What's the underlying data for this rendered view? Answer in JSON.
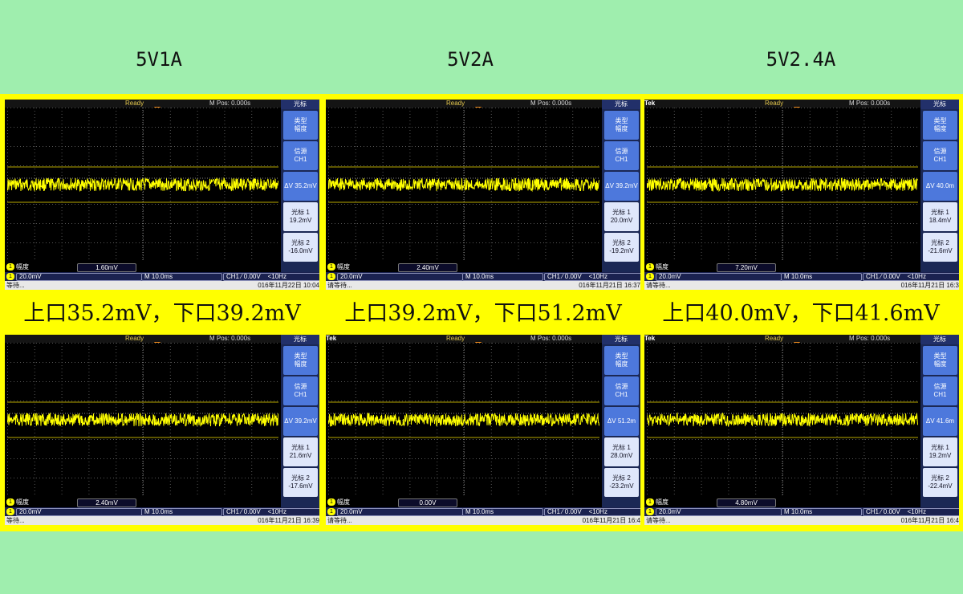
{
  "columns": [
    {
      "title": "5V1A",
      "caption": "上口35.2mV，下口39.2mV"
    },
    {
      "title": "5V2A",
      "caption": "上口39.2mV，下口51.2mV"
    },
    {
      "title": "5V2.4A",
      "caption": "上口40.0mV，下口41.6mV"
    }
  ],
  "scope_common": {
    "ready": "Ready",
    "mpos": "M Pos: 0.000s",
    "menu_title": "光标",
    "type_label": "类型",
    "type_value": "幅度",
    "source_label": "信源",
    "source_value": "CH1",
    "cursor1_label": "光标 1",
    "cursor2_label": "光标 2",
    "meas_label": "幅度",
    "ch_scale": "20.0mV",
    "timebase": "M 10.0ms",
    "trigger": "CH1 ⁄ 0.00V",
    "trigger_freq": "<10Hz",
    "channel_num": "1",
    "tek_logo": "Tek",
    "waiting": "请等待..."
  },
  "scopes": [
    {
      "delta_v": "ΔV 35.2mV",
      "cursor1": "19.2mV",
      "cursor2": "-16.0mV",
      "meas": "1.60mV",
      "date": "016年11月22日 10:04",
      "tek": false,
      "wait": "等待..."
    },
    {
      "delta_v": "ΔV 39.2mV",
      "cursor1": "20.0mV",
      "cursor2": "-19.2mV",
      "meas": "2.40mV",
      "date": "016年11月21日 16:37",
      "tek": false,
      "wait": "请等待..."
    },
    {
      "delta_v": "ΔV 40.0m",
      "cursor1": "18.4mV",
      "cursor2": "-21.6mV",
      "meas": "7.20mV",
      "date": "016年11月21日 16:3",
      "tek": true,
      "wait": "请等待..."
    },
    {
      "delta_v": "ΔV 39.2mV",
      "cursor1": "21.6mV",
      "cursor2": "-17.6mV",
      "meas": "2.40mV",
      "date": "016年11月21日 16:39",
      "tek": false,
      "wait": "等待..."
    },
    {
      "delta_v": "ΔV 51.2m",
      "cursor1": "28.0mV",
      "cursor2": "-23.2mV",
      "meas": "0.00V",
      "date": "016年11月21日 16:4",
      "tek": true,
      "wait": "请等待..."
    },
    {
      "delta_v": "ΔV 41.6m",
      "cursor1": "19.2mV",
      "cursor2": "-22.4mV",
      "meas": "4.80mV",
      "date": "016年11月21日 16:4",
      "tek": true,
      "wait": "请等待..."
    }
  ],
  "colors": {
    "background": "#9feeae",
    "frame": "#ffff00",
    "trace": "#ffff00",
    "menu_button": "#4d78dc"
  }
}
